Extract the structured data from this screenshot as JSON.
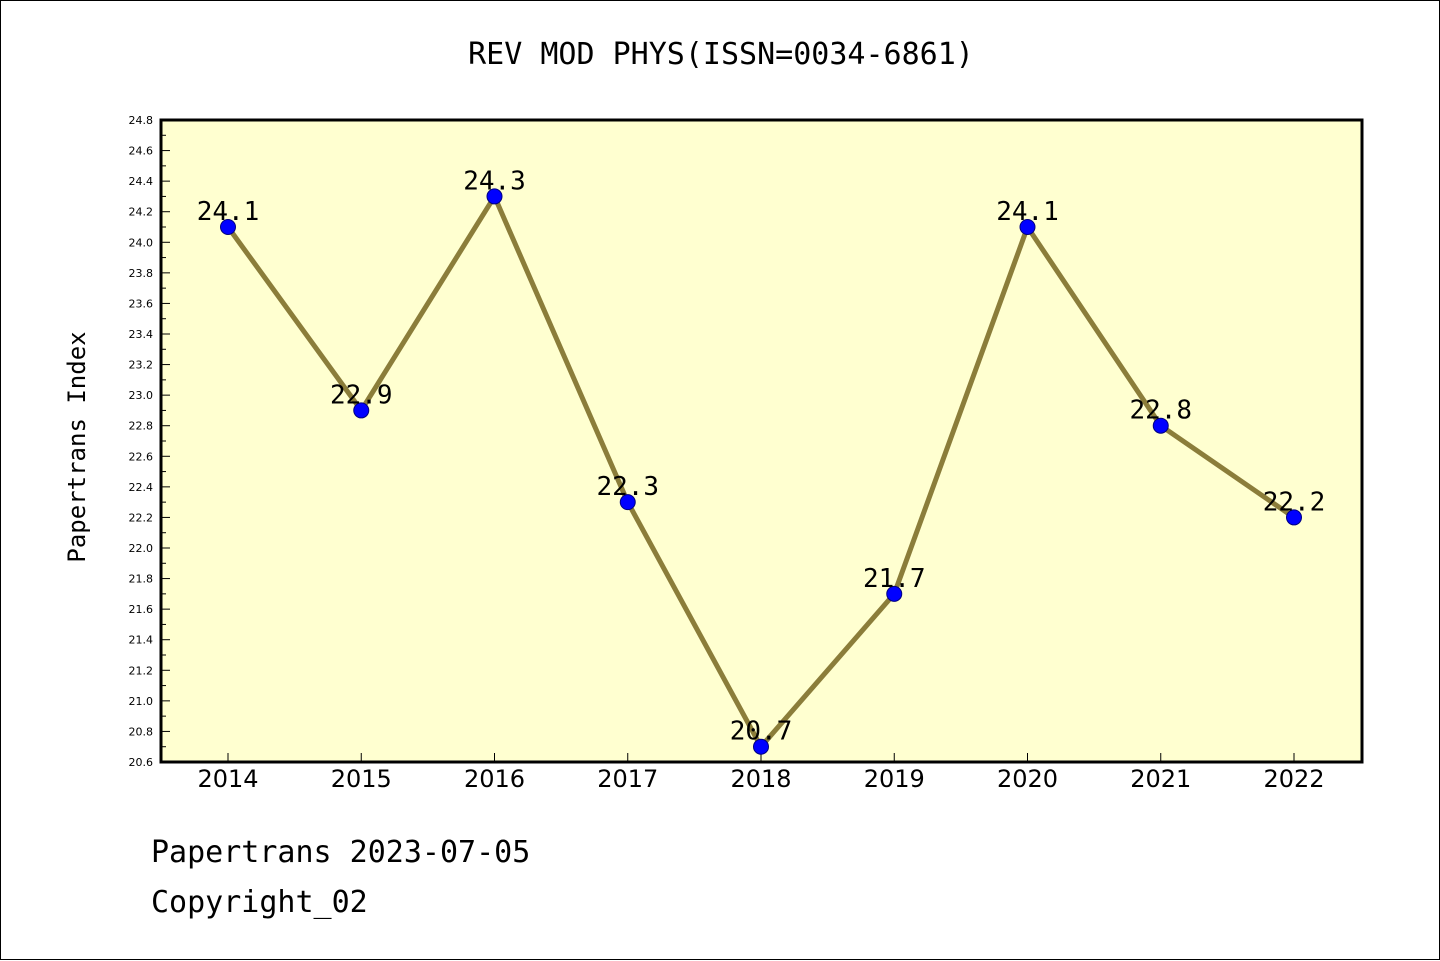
{
  "title": "REV MOD PHYS(ISSN=0034-6861)",
  "footer": {
    "line1": "Papertrans 2023-07-05",
    "line2": "Copyright_02"
  },
  "colors": {
    "plot_background": "#ffffd0",
    "line": "#8b7d3a",
    "marker": "#0000ff",
    "marker_edge": "#000080"
  },
  "chart_data": {
    "type": "line",
    "title": "REV MOD PHYS(ISSN=0034-6861)",
    "xlabel": "",
    "ylabel": "Papertrans Index",
    "categories": [
      "2014",
      "2015",
      "2016",
      "2017",
      "2018",
      "2019",
      "2020",
      "2021",
      "2022"
    ],
    "values": [
      24.1,
      22.9,
      24.3,
      22.3,
      20.7,
      21.7,
      24.1,
      22.8,
      22.2
    ],
    "data_labels": [
      "24.1",
      "22.9",
      "24.3",
      "22.3",
      "20.7",
      "21.7",
      "24.1",
      "22.8",
      "22.2"
    ],
    "ylim": [
      20.6,
      24.8
    ],
    "yticks": [
      "20.6",
      "20.8",
      "21.0",
      "21.2",
      "21.4",
      "21.6",
      "21.8",
      "22.0",
      "22.2",
      "22.4",
      "22.6",
      "22.8",
      "23.0",
      "23.2",
      "23.4",
      "23.6",
      "23.8",
      "24.0",
      "24.2",
      "24.4",
      "24.6",
      "24.8"
    ],
    "grid": false,
    "legend": "none"
  }
}
